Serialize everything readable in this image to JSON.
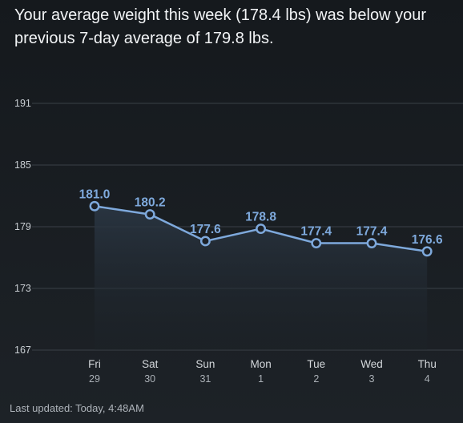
{
  "summary": {
    "headline": "Your average weight this week (178.4 lbs) was below your previous 7-day average of 179.8 lbs."
  },
  "footer": {
    "last_updated": "Last updated: Today, 4:48AM"
  },
  "colors": {
    "line": "#7ea9dc",
    "marker_fill": "#1c2128",
    "area_top": "#2b3744"
  },
  "chart_data": {
    "type": "line",
    "categories": [
      "Fri",
      "Sat",
      "Sun",
      "Mon",
      "Tue",
      "Wed",
      "Thu"
    ],
    "sublabels": [
      "29",
      "30",
      "31",
      "1",
      "2",
      "3",
      "4"
    ],
    "values": [
      181.0,
      180.2,
      177.6,
      178.8,
      177.4,
      177.4,
      176.6
    ],
    "data_labels": [
      "181.0",
      "180.2",
      "177.6",
      "178.8",
      "177.4",
      "177.4",
      "176.6"
    ],
    "yticks": [
      191,
      185,
      179,
      173,
      167
    ],
    "ylim": [
      167,
      191
    ],
    "grid": true,
    "area_fill": true
  }
}
